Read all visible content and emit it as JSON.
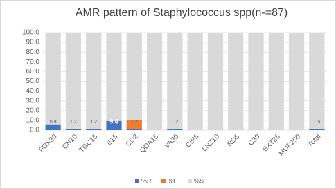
{
  "chart_data": {
    "type": "stacked_bar",
    "title": "AMR pattern of Staphylococcus spp(n-=87)",
    "categories": [
      "FOX30",
      "CN10",
      "TGC15",
      "E15",
      "CD2",
      "QDA15",
      "VA30",
      "CIP5",
      "LNZ10",
      "RD5",
      "C30",
      "SXT25",
      "MUP200",
      "Total"
    ],
    "series": [
      {
        "name": "%R",
        "color": "#4472c4",
        "values": [
          5.9,
          1.2,
          1.2,
          9.4,
          1.2,
          0,
          1.2,
          0,
          0,
          0,
          0,
          0,
          0,
          1.5
        ],
        "value_labels": [
          "5.9",
          "1.2",
          "1.2",
          "9.4",
          "1.2",
          null,
          "1.2",
          null,
          null,
          null,
          null,
          null,
          null,
          "1.5"
        ]
      },
      {
        "name": "%I",
        "color": "#ed7d31",
        "values": [
          0,
          0,
          0,
          0,
          9.4,
          0,
          0,
          0,
          0,
          0,
          0,
          0,
          0,
          0
        ]
      },
      {
        "name": "%S",
        "color": "#d9d9d9",
        "values": [
          94.1,
          98.8,
          98.8,
          90.6,
          89.4,
          100,
          98.8,
          100,
          100,
          100,
          100,
          100,
          100,
          98.5
        ]
      }
    ],
    "ylim": [
      0,
      100
    ],
    "yticks": [
      {
        "value": 0,
        "label": "0.0"
      },
      {
        "value": 10,
        "label": "10.0"
      },
      {
        "value": 20,
        "label": "20.0"
      },
      {
        "value": 30,
        "label": "30.0"
      },
      {
        "value": 40,
        "label": "40.0"
      },
      {
        "value": 50,
        "label": "50.0"
      },
      {
        "value": 60,
        "label": "60.0"
      },
      {
        "value": 70,
        "label": "70.0"
      },
      {
        "value": 80,
        "label": "80.0"
      },
      {
        "value": 90,
        "label": "90.0"
      },
      {
        "value": 100,
        "label": "100.0"
      }
    ],
    "grid": true,
    "legend": "bottom"
  }
}
